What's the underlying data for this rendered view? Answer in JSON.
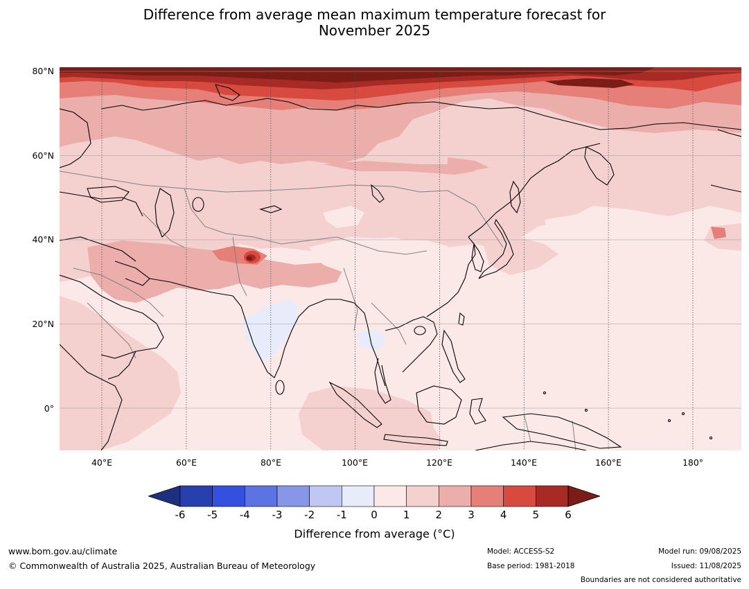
{
  "title_line1": "Difference from average mean maximum temperature forecast for",
  "title_line2": "November 2025",
  "map": {
    "lat_labels": [
      "80°N",
      "60°N",
      "40°N",
      "20°N",
      "0°"
    ],
    "lon_labels": [
      "40°E",
      "60°E",
      "80°E",
      "100°E",
      "120°E",
      "140°E",
      "160°E",
      "180°"
    ],
    "extent": {
      "lon_min": 30,
      "lon_max": 191.5,
      "lat_min": -10,
      "lat_max": 81
    },
    "colors": {
      "ocean_base": "#fbe9e8",
      "band_0_1": "#fbe9e8",
      "band_1_2": "#f4d1cf",
      "band_2_3": "#ecaeaa",
      "band_3_4": "#e57f78",
      "band_4_5": "#d84a3f",
      "band_5_6": "#a72a24",
      "band_gt6": "#7b1c17",
      "band_neg1_0": "#e8ecfa",
      "coast": "#000000",
      "border": "#808080",
      "grid": "#444444"
    }
  },
  "colorbar": {
    "ticks": [
      "-6",
      "-5",
      "-4",
      "-3",
      "-2",
      "-1",
      "0",
      "1",
      "2",
      "3",
      "4",
      "5",
      "6"
    ],
    "colors": [
      "#1f2f80",
      "#283fae",
      "#3350df",
      "#5c73e4",
      "#8796e9",
      "#c0c7f3",
      "#e8ecfa",
      "#fbe9e8",
      "#f4d1cf",
      "#ecaeaa",
      "#e57f78",
      "#d84a3f",
      "#a72a24",
      "#7b1c17"
    ],
    "label": "Difference from average (°C)"
  },
  "footer": {
    "url": "www.bom.gov.au/climate",
    "copyright": "© Commonwealth of Australia 2025, Australian Bureau of Meteorology",
    "model": "Model: ACCESS-S2",
    "base_period": "Base period: 1981-2018",
    "model_run": "Model run: 09/08/2025",
    "issued": "Issued: 11/08/2025",
    "disclaimer": "Boundaries are not considered authoritative"
  }
}
